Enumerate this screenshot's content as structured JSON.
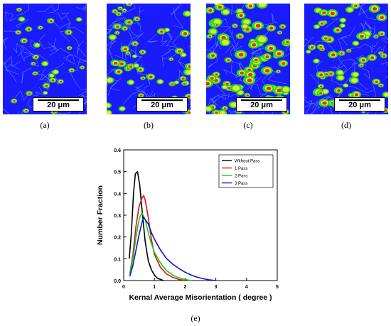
{
  "panels": [
    {
      "label": "(a)",
      "scale": "20 μm",
      "density": 0.35
    },
    {
      "label": "(b)",
      "scale": "20 μm",
      "density": 0.65
    },
    {
      "label": "(c)",
      "scale": "20 μm",
      "density": 1.0
    },
    {
      "label": "(d)",
      "scale": "20 μm",
      "density": 0.8
    }
  ],
  "colors": {
    "map_blue": "#1a1aff",
    "green": "#22dd22",
    "yellow": "#e8e82a",
    "red": "#ee2a1a",
    "boundary": "#5a8aff"
  },
  "panel_e_label": "(e)",
  "chart_data": {
    "type": "line",
    "title": "",
    "xlabel": "Kernal Average Misorientation ( degree )",
    "ylabel": "Number Fraction",
    "xlim": [
      0,
      5
    ],
    "ylim": [
      0,
      0.6
    ],
    "xticks": [
      "0",
      "1",
      "2",
      "3",
      "4",
      "5"
    ],
    "yticks": [
      "0.0",
      "0.1",
      "0.2",
      "0.3",
      "0.4",
      "0.5",
      "0.6"
    ],
    "legend_position": "top-right",
    "series": [
      {
        "name": "Without Pass",
        "color": "#000000",
        "x": [
          0.18,
          0.25,
          0.32,
          0.38,
          0.45,
          0.52,
          0.6,
          0.7,
          0.8,
          0.9,
          1.0,
          1.1,
          1.3
        ],
        "y": [
          0.1,
          0.22,
          0.4,
          0.49,
          0.5,
          0.44,
          0.32,
          0.18,
          0.09,
          0.05,
          0.025,
          0.01,
          0.0
        ]
      },
      {
        "name": "1 Pass",
        "color": "#dd1111",
        "x": [
          0.2,
          0.3,
          0.4,
          0.5,
          0.6,
          0.65,
          0.7,
          0.8,
          0.9,
          1.0,
          1.2,
          1.4,
          1.6,
          1.8,
          2.0
        ],
        "y": [
          0.03,
          0.12,
          0.25,
          0.34,
          0.38,
          0.39,
          0.37,
          0.29,
          0.19,
          0.12,
          0.06,
          0.03,
          0.015,
          0.005,
          0.0
        ]
      },
      {
        "name": "2 Pass",
        "color": "#11cc11",
        "x": [
          0.2,
          0.3,
          0.4,
          0.5,
          0.55,
          0.6,
          0.7,
          0.8,
          0.9,
          1.0,
          1.2,
          1.4,
          1.6,
          1.8,
          2.0,
          2.2
        ],
        "y": [
          0.03,
          0.1,
          0.2,
          0.28,
          0.3,
          0.31,
          0.28,
          0.22,
          0.17,
          0.13,
          0.08,
          0.045,
          0.025,
          0.012,
          0.005,
          0.0
        ]
      },
      {
        "name": "3 Pass",
        "color": "#1111cc",
        "x": [
          0.2,
          0.3,
          0.4,
          0.5,
          0.6,
          0.65,
          0.7,
          0.8,
          0.9,
          1.0,
          1.2,
          1.4,
          1.6,
          1.8,
          2.0,
          2.2,
          2.4,
          2.6,
          2.8,
          3.0
        ],
        "y": [
          0.02,
          0.07,
          0.14,
          0.21,
          0.27,
          0.29,
          0.28,
          0.26,
          0.22,
          0.19,
          0.14,
          0.1,
          0.075,
          0.055,
          0.038,
          0.025,
          0.015,
          0.008,
          0.003,
          0.0
        ]
      }
    ]
  }
}
